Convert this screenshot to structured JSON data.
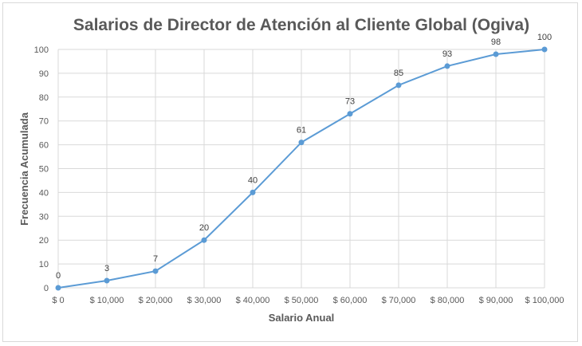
{
  "chart_data": {
    "type": "line",
    "title": "Salarios de Director de Atención al Cliente Global (Ogiva)",
    "xlabel": "Salario Anual",
    "ylabel": "Frecuencia Acumulada",
    "categories": [
      "$ 0",
      "$ 10,000",
      "$ 20,000",
      "$ 30,000",
      "$ 40,000",
      "$ 50,000",
      "$ 60,000",
      "$ 70,000",
      "$ 80,000",
      "$ 90,000",
      "$ 100,000"
    ],
    "x": [
      0,
      10000,
      20000,
      30000,
      40000,
      50000,
      60000,
      70000,
      80000,
      90000,
      100000
    ],
    "series": [
      {
        "values": [
          0,
          3,
          7,
          20,
          40,
          61,
          73,
          85,
          93,
          98,
          100
        ]
      }
    ],
    "ylim": [
      0,
      100
    ],
    "yticks": [
      0,
      10,
      20,
      30,
      40,
      50,
      60,
      70,
      80,
      90,
      100
    ],
    "grid": true,
    "legend": "none",
    "data_labels": true,
    "line_color": "#5b9bd5"
  }
}
